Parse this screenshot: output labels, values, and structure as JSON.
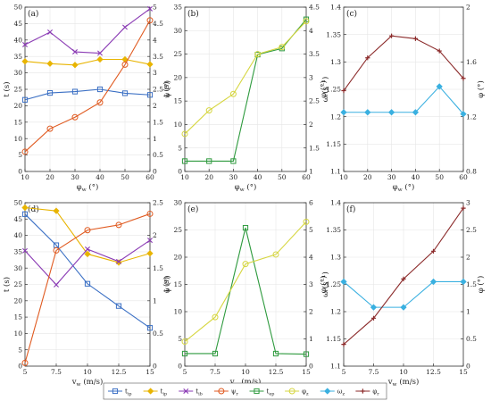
{
  "colors": {
    "t_ip": "#3a6fc4",
    "t_ip2": "#e8b400",
    "t_ib": "#8a3ab4",
    "psi_r": "#e05a20",
    "t_ep": "#2e9a3e",
    "phi_z": "#d6d640",
    "omega_z": "#3ab0e0",
    "phi_r": "#8b2a2a"
  },
  "legend": [
    {
      "label": "t_ip",
      "color_key": "t_ip",
      "marker": "square"
    },
    {
      "label": "t_ip",
      "color_key": "t_ip2",
      "marker": "diamond"
    },
    {
      "label": "t_ib",
      "color_key": "t_ib",
      "marker": "x"
    },
    {
      "label": "ψ_r",
      "color_key": "psi_r",
      "marker": "circle"
    },
    {
      "label": "t_ep",
      "color_key": "t_ep",
      "marker": "square"
    },
    {
      "label": "φ_z",
      "color_key": "phi_z",
      "marker": "circle"
    },
    {
      "label": "ω_z",
      "color_key": "omega_z",
      "marker": "diamond"
    },
    {
      "label": "φ_r",
      "color_key": "phi_r",
      "marker": "plus"
    }
  ],
  "chart_data": [
    {
      "panel": "(a)",
      "type": "line",
      "xlabel": "φ_w (°)",
      "ylabel": "t (s)",
      "y2label": "ψ (°)",
      "x": [
        10,
        20,
        30,
        40,
        50,
        60
      ],
      "xticks": [
        10,
        20,
        30,
        40,
        50,
        60
      ],
      "xlim": [
        10,
        60
      ],
      "ylim": [
        0,
        50
      ],
      "y2lim": [
        0,
        5
      ],
      "yticks": [
        0,
        5,
        10,
        15,
        20,
        25,
        30,
        35,
        40,
        45,
        50
      ],
      "y2ticks": [
        0,
        0.5,
        1,
        1.5,
        2,
        2.5,
        3,
        3.5,
        4,
        4.5,
        5
      ],
      "series": [
        {
          "key": "t_ip",
          "axis": "left",
          "marker": "square",
          "values": [
            21.8,
            23.9,
            24.3,
            25.0,
            23.8,
            23.3
          ]
        },
        {
          "key": "t_ip2",
          "axis": "left",
          "marker": "diamond",
          "values": [
            33.5,
            32.8,
            32.4,
            34.1,
            34.1,
            32.6
          ]
        },
        {
          "key": "t_ib",
          "axis": "left",
          "marker": "x",
          "values": [
            38.6,
            42.4,
            36.4,
            36.0,
            43.9,
            49.5
          ]
        },
        {
          "key": "psi_r",
          "axis": "right",
          "marker": "circle",
          "values": [
            0.6,
            1.3,
            1.65,
            2.1,
            3.25,
            4.6
          ]
        }
      ]
    },
    {
      "panel": "(b)",
      "type": "line",
      "xlabel": "φ_w (°)",
      "ylabel": "t (s)",
      "y2label": "φ (°)",
      "x": [
        10,
        20,
        30,
        40,
        50,
        60
      ],
      "xticks": [
        10,
        20,
        30,
        40,
        50,
        60
      ],
      "xlim": [
        10,
        60
      ],
      "ylim": [
        0,
        35
      ],
      "y2lim": [
        1,
        4.5
      ],
      "yticks": [
        0,
        5,
        10,
        15,
        20,
        25,
        30,
        35
      ],
      "y2ticks": [
        1,
        1.5,
        2,
        2.5,
        3,
        3.5,
        4,
        4.5
      ],
      "series": [
        {
          "key": "t_ep",
          "axis": "left",
          "marker": "square",
          "values": [
            2.2,
            2.2,
            2.2,
            24.9,
            26.2,
            32.4
          ]
        },
        {
          "key": "phi_z",
          "axis": "right",
          "marker": "circle",
          "values": [
            1.8,
            2.3,
            2.65,
            3.5,
            3.65,
            4.2
          ]
        }
      ]
    },
    {
      "panel": "(c)",
      "type": "line",
      "xlabel": "φ_w (°)",
      "ylabel": "ω (s⁻¹)",
      "y2label": "φ (°)",
      "x": [
        10,
        20,
        30,
        40,
        50,
        60
      ],
      "xticks": [
        10,
        20,
        30,
        40,
        50,
        60
      ],
      "xlim": [
        10,
        60
      ],
      "ylim": [
        1.1,
        1.4
      ],
      "y2lim": [
        0.8,
        2
      ],
      "yticks": [
        1.1,
        1.15,
        1.2,
        1.25,
        1.3,
        1.35,
        1.4
      ],
      "y2ticks": [
        0.8,
        1.2,
        1.6,
        2
      ],
      "series": [
        {
          "key": "omega_z",
          "axis": "left",
          "marker": "diamond",
          "values": [
            1.208,
            1.208,
            1.208,
            1.208,
            1.255,
            1.205
          ]
        },
        {
          "key": "phi_r",
          "axis": "right",
          "marker": "plus",
          "values": [
            1.39,
            1.63,
            1.79,
            1.77,
            1.68,
            1.48
          ]
        }
      ]
    },
    {
      "panel": "(d)",
      "type": "line",
      "xlabel": "v_w (m/s)",
      "ylabel": "t (s)",
      "y2label": "ψ (°)",
      "x": [
        5,
        7.5,
        10,
        12.5,
        15
      ],
      "xticks": [
        5,
        7.5,
        10,
        12.5,
        15
      ],
      "xlim": [
        5,
        15
      ],
      "ylim": [
        0,
        50
      ],
      "y2lim": [
        0,
        2.5
      ],
      "yticks": [
        0,
        5,
        10,
        15,
        20,
        25,
        30,
        35,
        40,
        45,
        50
      ],
      "y2ticks": [
        0,
        0.5,
        1,
        1.5,
        2,
        2.5
      ],
      "series": [
        {
          "key": "t_ip",
          "axis": "left",
          "marker": "square",
          "values": [
            46.5,
            37.0,
            25.2,
            18.4,
            11.7
          ]
        },
        {
          "key": "t_ip2",
          "axis": "left",
          "marker": "diamond",
          "values": [
            48.5,
            47.5,
            34.3,
            31.7,
            34.5
          ]
        },
        {
          "key": "t_ib",
          "axis": "left",
          "marker": "x",
          "values": [
            35.3,
            24.9,
            35.8,
            32.0,
            38.5
          ]
        },
        {
          "key": "psi_r",
          "axis": "right",
          "marker": "circle",
          "values": [
            0.05,
            1.77,
            2.08,
            2.16,
            2.33
          ]
        }
      ]
    },
    {
      "panel": "(e)",
      "type": "line",
      "xlabel": "v_w (m/s)",
      "ylabel": "t (s)",
      "y2label": "φ (°)",
      "x": [
        5,
        7.5,
        10,
        12.5,
        15
      ],
      "xticks": [
        5,
        7.5,
        10,
        12.5,
        15
      ],
      "xlim": [
        5,
        15
      ],
      "ylim": [
        0,
        30
      ],
      "y2lim": [
        0,
        6
      ],
      "yticks": [
        0,
        5,
        10,
        15,
        20,
        25,
        30
      ],
      "y2ticks": [
        0,
        1,
        2,
        3,
        4,
        5,
        6
      ],
      "series": [
        {
          "key": "t_ep",
          "axis": "left",
          "marker": "square",
          "values": [
            2.3,
            2.3,
            25.4,
            2.3,
            2.2
          ]
        },
        {
          "key": "phi_z",
          "axis": "right",
          "marker": "circle",
          "values": [
            0.9,
            1.8,
            3.75,
            4.1,
            5.3
          ]
        }
      ]
    },
    {
      "panel": "(f)",
      "type": "line",
      "xlabel": "v_w (m/s)",
      "ylabel": "ω (s⁻¹)",
      "y2label": "φ (°)",
      "x": [
        5,
        7.5,
        10,
        12.5,
        15
      ],
      "xticks": [
        5,
        7.5,
        10,
        12.5,
        15
      ],
      "xlim": [
        5,
        15
      ],
      "ylim": [
        1.1,
        1.4
      ],
      "y2lim": [
        0,
        3
      ],
      "yticks": [
        1.1,
        1.15,
        1.2,
        1.25,
        1.3,
        1.35,
        1.4
      ],
      "y2ticks": [
        0,
        0.5,
        1,
        1.5,
        2,
        2.5,
        3
      ],
      "series": [
        {
          "key": "omega_z",
          "axis": "left",
          "marker": "diamond",
          "values": [
            1.255,
            1.208,
            1.208,
            1.255,
            1.255
          ]
        },
        {
          "key": "phi_r",
          "axis": "right",
          "marker": "plus",
          "values": [
            0.4,
            0.88,
            1.6,
            2.11,
            2.9
          ]
        }
      ]
    }
  ]
}
